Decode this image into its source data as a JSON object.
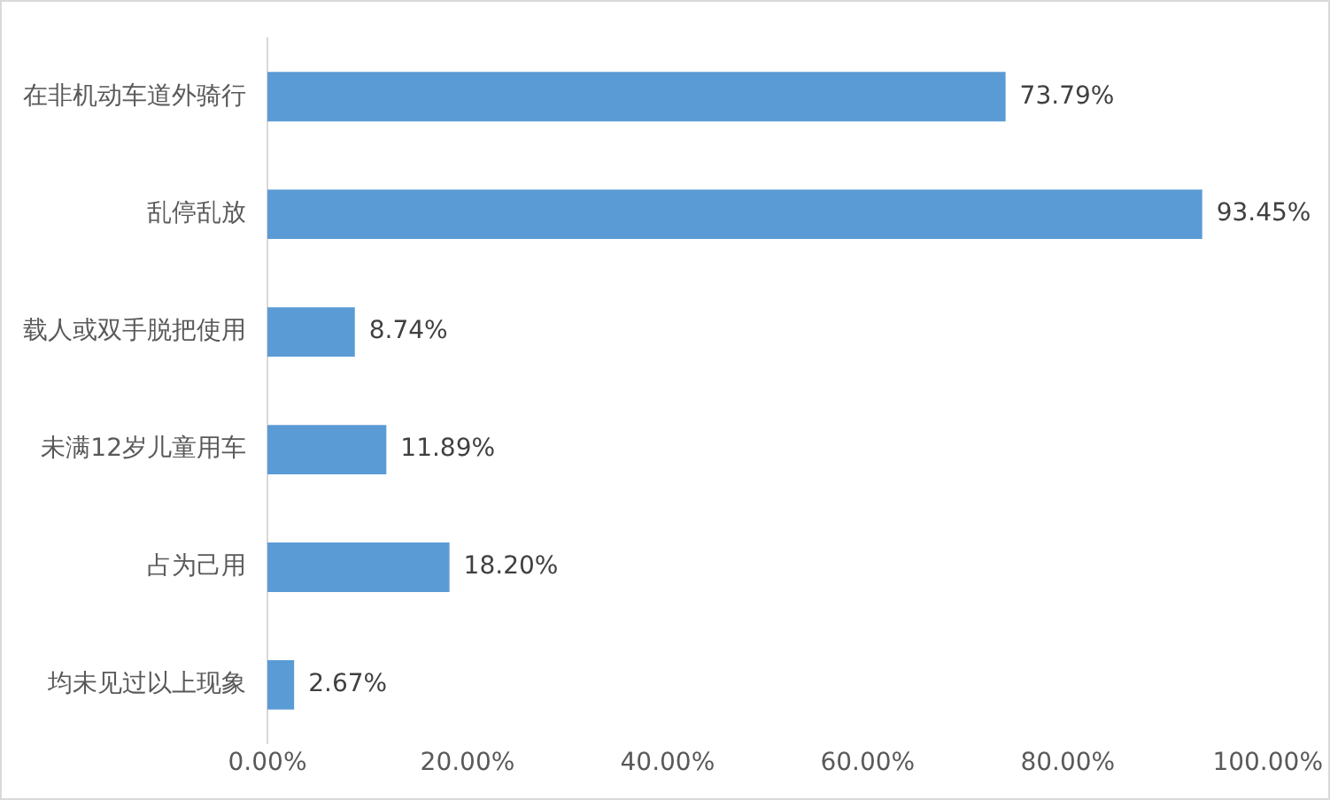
{
  "chart_data": {
    "type": "bar",
    "orientation": "horizontal",
    "categories": [
      "在非机动车道外骑行",
      "乱停乱放",
      "载人或双手脱把使用",
      "未满12岁儿童用车",
      "占为己用",
      "均未见过以上现象"
    ],
    "values": [
      73.79,
      93.45,
      8.74,
      11.89,
      18.2,
      2.67
    ],
    "color": "#5b9bd5",
    "value_labels": [
      "73.79%",
      "93.45%",
      "8.74%",
      "11.89%",
      "18.20%",
      "2.67%"
    ],
    "xlim": [
      0,
      100
    ],
    "xticks": [
      {
        "value": 0,
        "label": "0.00%"
      },
      {
        "value": 20,
        "label": "20.00%"
      },
      {
        "value": 40,
        "label": "40.00%"
      },
      {
        "value": 60,
        "label": "60.00%"
      },
      {
        "value": 80,
        "label": "80.00%"
      },
      {
        "value": 100,
        "label": "100.00%"
      }
    ],
    "grid": false,
    "legend": false
  }
}
